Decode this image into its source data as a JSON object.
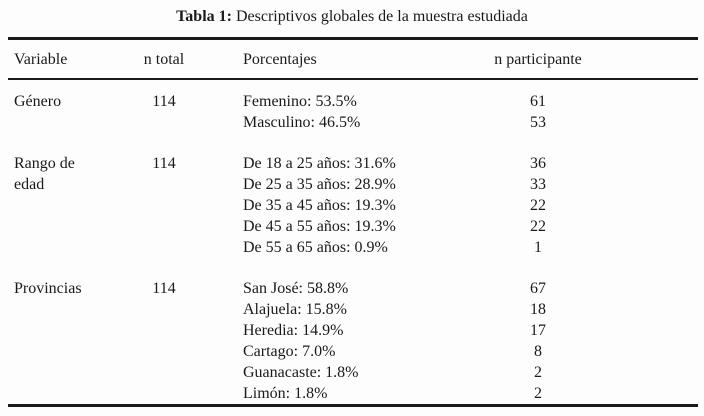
{
  "caption": {
    "label": "Tabla 1:",
    "text": "Descriptivos globales de la muestra estudiada"
  },
  "colors": {
    "text": "#1a1a1a",
    "background": "#fdfdfd",
    "rule": "#1a1a1a"
  },
  "table": {
    "headers": {
      "variable": "Variable",
      "n_total": "n total",
      "porcentajes": "Porcentajes",
      "n_participante": "n participante"
    },
    "groups": [
      {
        "variable": "Género",
        "n_total": "114",
        "rows": [
          {
            "porcentaje": "Femenino: 53.5%",
            "n": "61"
          },
          {
            "porcentaje": "Masculino: 46.5%",
            "n": "53"
          }
        ]
      },
      {
        "variable": "Rango de edad",
        "n_total": "114",
        "rows": [
          {
            "porcentaje": "De 18 a 25 años: 31.6%",
            "n": "36"
          },
          {
            "porcentaje": "De 25 a 35 años: 28.9%",
            "n": "33"
          },
          {
            "porcentaje": "De 35 a 45 años: 19.3%",
            "n": "22"
          },
          {
            "porcentaje": "De 45 a 55 años: 19.3%",
            "n": "22"
          },
          {
            "porcentaje": "De 55 a 65 años: 0.9%",
            "n": "1"
          }
        ]
      },
      {
        "variable": "Provincias",
        "n_total": "114",
        "rows": [
          {
            "porcentaje": "San José: 58.8%",
            "n": "67"
          },
          {
            "porcentaje": "Alajuela: 15.8%",
            "n": "18"
          },
          {
            "porcentaje": "Heredia: 14.9%",
            "n": "17"
          },
          {
            "porcentaje": "Cartago: 7.0%",
            "n": "8"
          },
          {
            "porcentaje": "Guanacaste: 1.8%",
            "n": "2"
          },
          {
            "porcentaje": "Limón: 1.8%",
            "n": "2"
          }
        ]
      }
    ]
  }
}
